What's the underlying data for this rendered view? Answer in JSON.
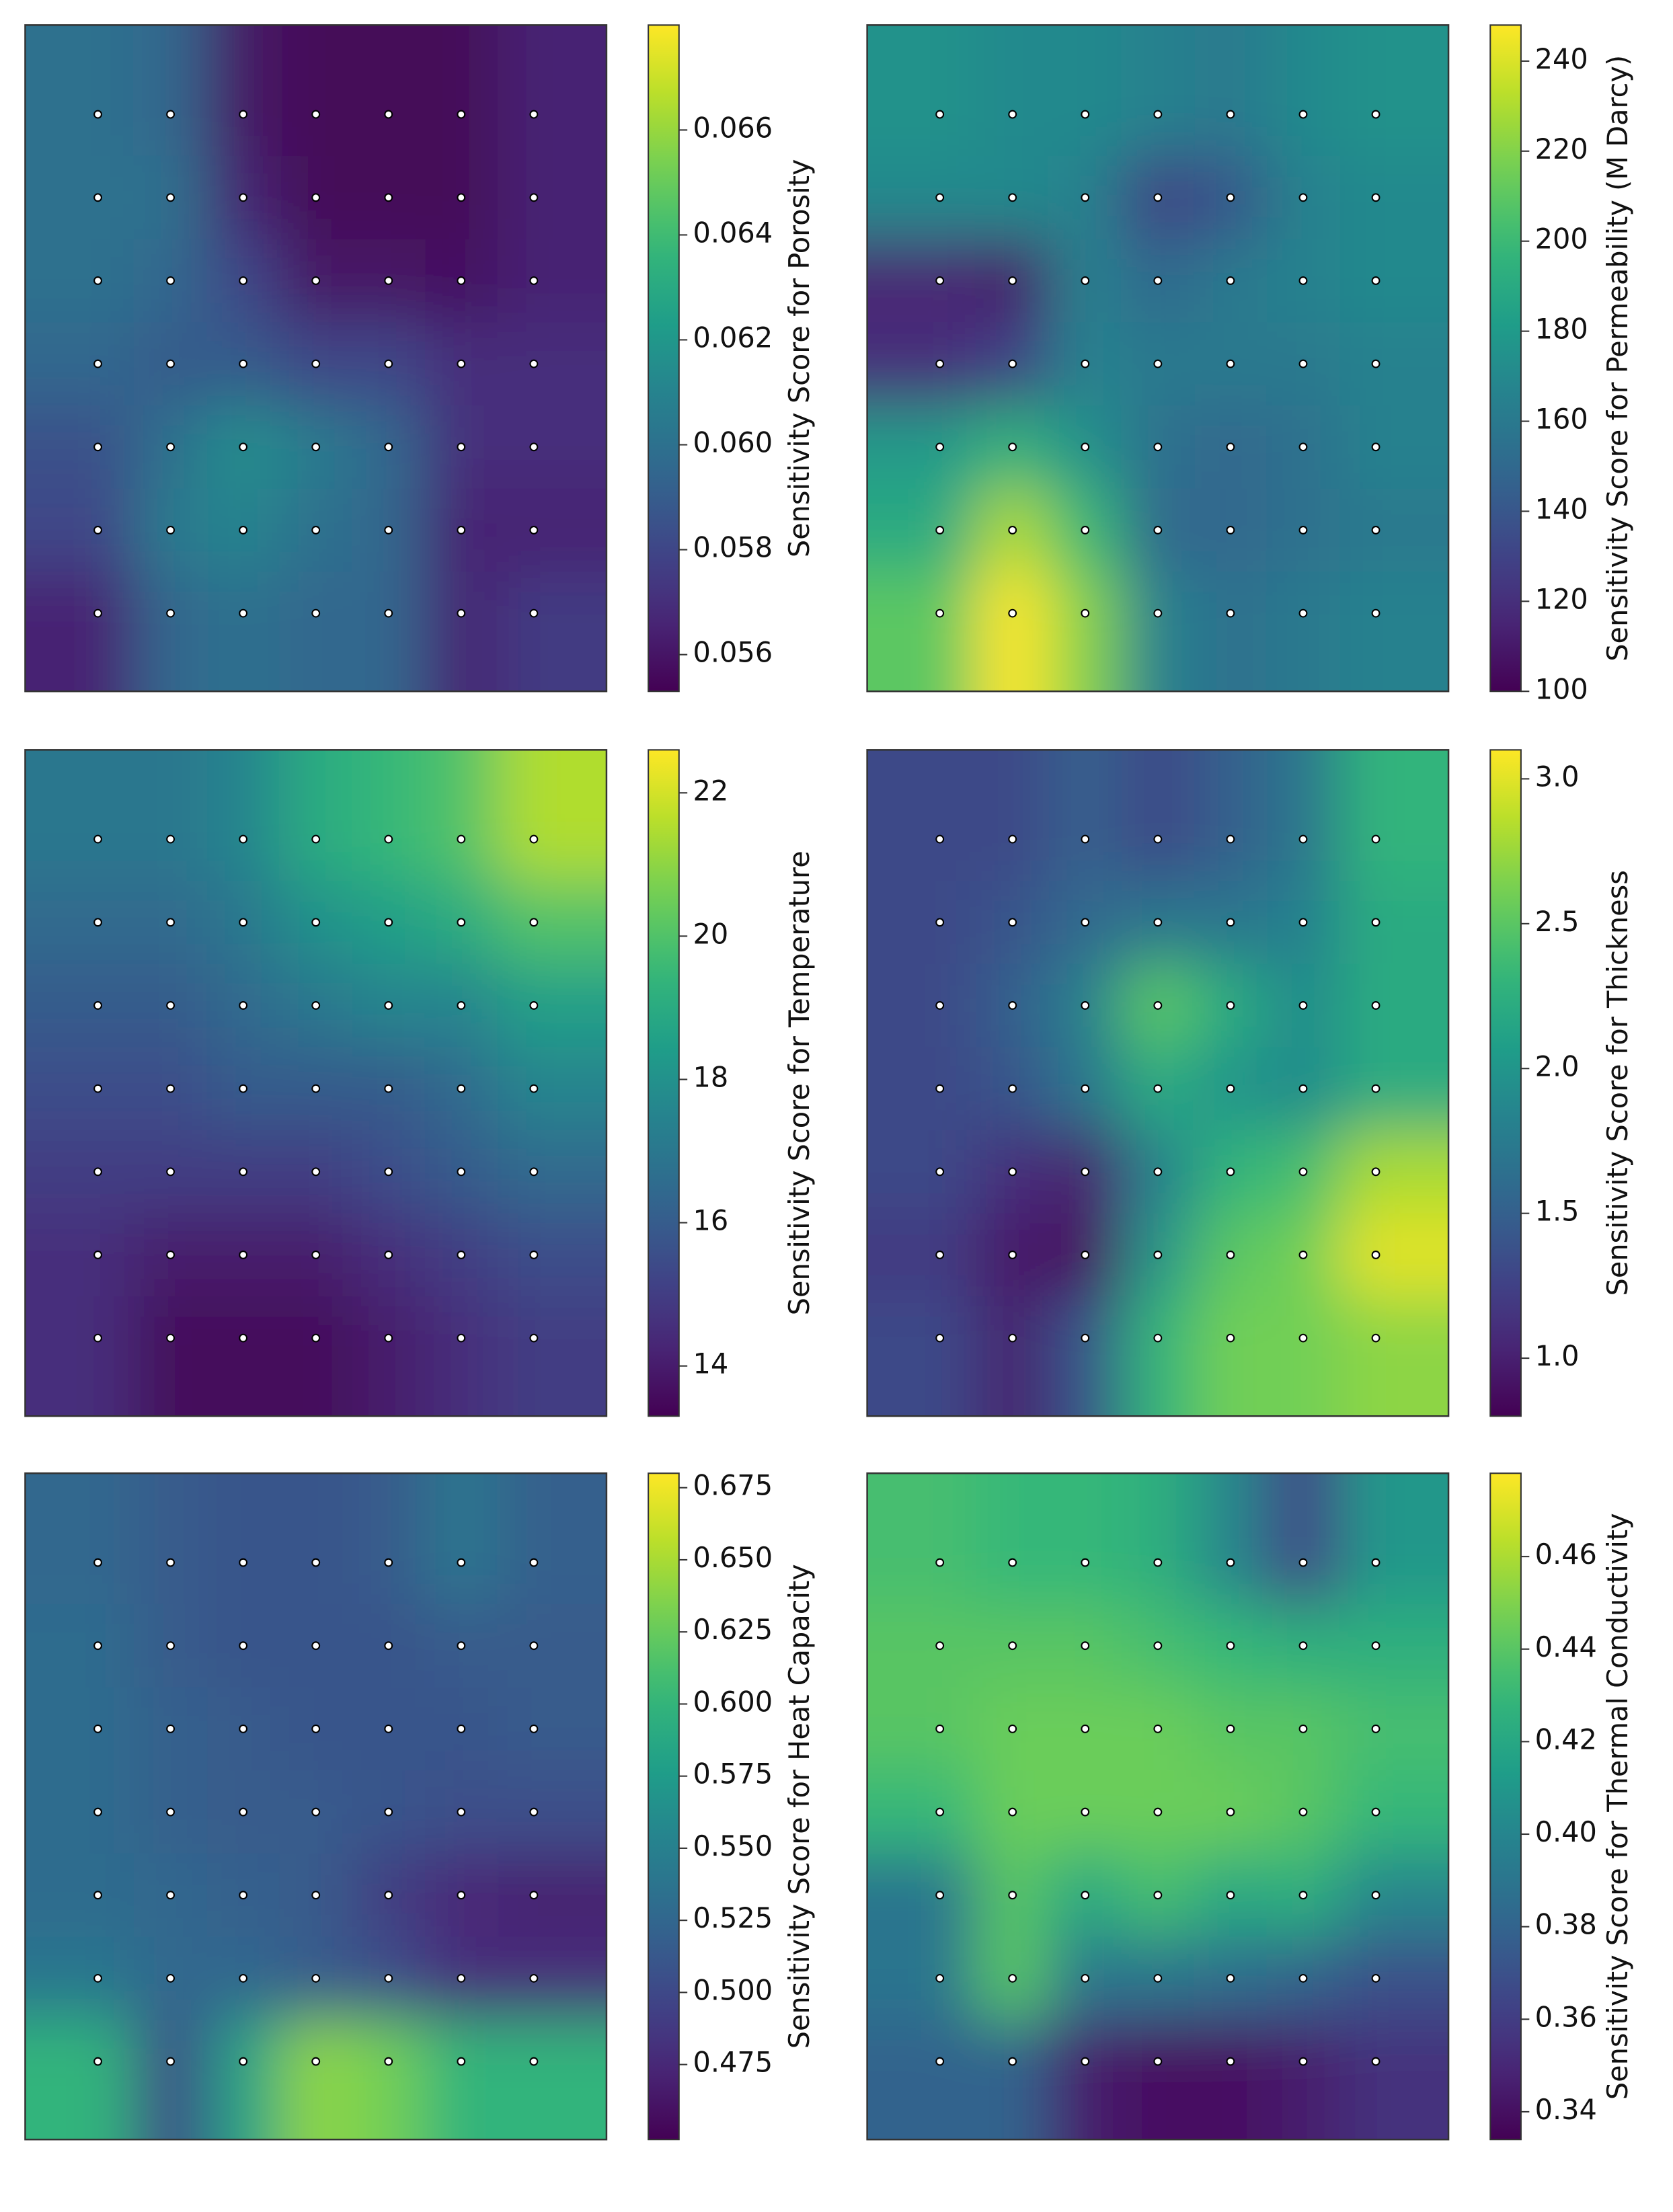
{
  "chart_data": [
    {
      "type": "heatmap",
      "colormap": "viridis",
      "colorbar_label": "Sensitivity Score for Porosity",
      "clim": [
        0.0553,
        0.068
      ],
      "cticks": [
        0.056,
        0.058,
        {
          "value": 0.06,
          "label": "0.060"
        },
        0.062,
        0.064,
        0.066
      ],
      "values": [
        [
          0.06,
          0.0595,
          0.056,
          0.0555,
          0.0555,
          0.0555,
          0.0565
        ],
        [
          0.06,
          0.06,
          0.0565,
          0.0555,
          0.0555,
          0.0555,
          0.0565
        ],
        [
          0.06,
          0.0595,
          0.058,
          0.056,
          0.056,
          0.0558,
          0.0565
        ],
        [
          0.0595,
          0.059,
          0.059,
          0.058,
          0.058,
          0.057,
          0.057
        ],
        [
          0.0585,
          0.06,
          0.0615,
          0.0605,
          0.0595,
          0.057,
          0.057
        ],
        [
          0.058,
          0.0605,
          0.061,
          0.06,
          0.0595,
          0.0565,
          0.0565
        ],
        [
          0.0565,
          0.0595,
          0.06,
          0.0595,
          0.0595,
          0.0565,
          0.0575
        ]
      ]
    },
    {
      "type": "heatmap",
      "colormap": "viridis",
      "colorbar_label": "Sensitivity Score for Permeability (M Darcy)",
      "clim": [
        100,
        248
      ],
      "cticks": [
        100,
        120,
        140,
        160,
        180,
        200,
        220,
        240
      ],
      "values": [
        [
          175,
          170,
          170,
          165,
          160,
          170,
          175
        ],
        [
          170,
          170,
          165,
          130,
          140,
          165,
          170
        ],
        [
          115,
          110,
          165,
          150,
          160,
          165,
          170
        ],
        [
          120,
          130,
          165,
          160,
          160,
          160,
          165
        ],
        [
          180,
          195,
          175,
          155,
          150,
          155,
          165
        ],
        [
          190,
          230,
          200,
          150,
          150,
          155,
          160
        ],
        [
          210,
          248,
          220,
          165,
          155,
          160,
          165
        ]
      ]
    },
    {
      "type": "heatmap",
      "colormap": "viridis",
      "colorbar_label": "Sensitivity Score for Temperature",
      "clim": [
        13.3,
        22.6
      ],
      "cticks": [
        14,
        16,
        18,
        20,
        22
      ],
      "values": [
        [
          17,
          17,
          17.5,
          19,
          19.5,
          20,
          21.5
        ],
        [
          16.5,
          16.5,
          17,
          18,
          18.5,
          19,
          20
        ],
        [
          16,
          16,
          16.5,
          17,
          17.5,
          17.5,
          18.5
        ],
        [
          15.5,
          15.5,
          16,
          16,
          16,
          16.5,
          17.5
        ],
        [
          15,
          15,
          15,
          15,
          15.5,
          16,
          16.5
        ],
        [
          14.5,
          14,
          14,
          14,
          14.5,
          15,
          15.5
        ],
        [
          14.5,
          13.5,
          13.5,
          13.5,
          14,
          14.5,
          15
        ]
      ]
    },
    {
      "type": "heatmap",
      "colormap": "viridis",
      "colorbar_label": "Sensitivity Score for Thickness",
      "clim": [
        0.8,
        3.1
      ],
      "cticks": [
        {
          "value": 1,
          "label": "1.0"
        },
        1.5,
        {
          "value": 2,
          "label": "2.0"
        },
        2.5,
        {
          "value": 3,
          "label": "3.0"
        }
      ],
      "values": [
        [
          1.3,
          1.3,
          1.5,
          1.3,
          1.5,
          1.7,
          2.3
        ],
        [
          1.3,
          1.4,
          1.6,
          1.7,
          1.7,
          1.8,
          2.2
        ],
        [
          1.3,
          1.5,
          1.8,
          2.5,
          2.2,
          1.9,
          2.2
        ],
        [
          1.3,
          1.4,
          1.7,
          2.2,
          2.0,
          1.9,
          2.2
        ],
        [
          1.3,
          1.1,
          1.0,
          1.8,
          2.3,
          2.4,
          2.8
        ],
        [
          1.2,
          0.95,
          0.9,
          2.0,
          2.5,
          2.6,
          3.0
        ],
        [
          1.3,
          1.0,
          1.4,
          2.3,
          2.6,
          2.6,
          2.7
        ]
      ]
    },
    {
      "type": "heatmap",
      "colormap": "viridis",
      "colorbar_label": "Sensitivity Score for Heat Capacity",
      "clim": [
        0.449,
        0.68
      ],
      "cticks": [
        0.475,
        {
          "value": 0.5,
          "label": "0.500"
        },
        0.525,
        {
          "value": 0.55,
          "label": "0.550"
        },
        0.575,
        {
          "value": 0.6,
          "label": "0.600"
        },
        0.625,
        {
          "value": 0.65,
          "label": "0.650"
        },
        0.675
      ],
      "values": [
        [
          0.525,
          0.515,
          0.51,
          0.51,
          0.515,
          0.54,
          0.52
        ],
        [
          0.53,
          0.515,
          0.51,
          0.51,
          0.51,
          0.515,
          0.515
        ],
        [
          0.53,
          0.52,
          0.515,
          0.51,
          0.51,
          0.51,
          0.515
        ],
        [
          0.53,
          0.52,
          0.515,
          0.515,
          0.51,
          0.505,
          0.505
        ],
        [
          0.53,
          0.525,
          0.52,
          0.515,
          0.49,
          0.475,
          0.47
        ],
        [
          0.54,
          0.525,
          0.525,
          0.515,
          0.505,
          0.48,
          0.48
        ],
        [
          0.6,
          0.5,
          0.58,
          0.64,
          0.63,
          0.6,
          0.6
        ]
      ]
    },
    {
      "type": "heatmap",
      "colormap": "viridis",
      "colorbar_label": "Sensitivity Score for Thermal Conductivity",
      "clim": [
        0.334,
        0.478
      ],
      "cticks": [
        0.34,
        0.36,
        0.38,
        {
          "value": 0.4,
          "label": "0.40"
        },
        0.42,
        0.44,
        0.46
      ],
      "values": [
        [
          0.435,
          0.43,
          0.43,
          0.425,
          0.4,
          0.365,
          0.41
        ],
        [
          0.44,
          0.44,
          0.44,
          0.435,
          0.43,
          0.425,
          0.425
        ],
        [
          0.44,
          0.445,
          0.445,
          0.445,
          0.44,
          0.44,
          0.435
        ],
        [
          0.43,
          0.445,
          0.445,
          0.445,
          0.445,
          0.44,
          0.43
        ],
        [
          0.39,
          0.44,
          0.42,
          0.435,
          0.42,
          0.425,
          0.4
        ],
        [
          0.39,
          0.44,
          0.39,
          0.39,
          0.385,
          0.38,
          0.37
        ],
        [
          0.38,
          0.38,
          0.345,
          0.34,
          0.34,
          0.345,
          0.355
        ]
      ]
    }
  ]
}
